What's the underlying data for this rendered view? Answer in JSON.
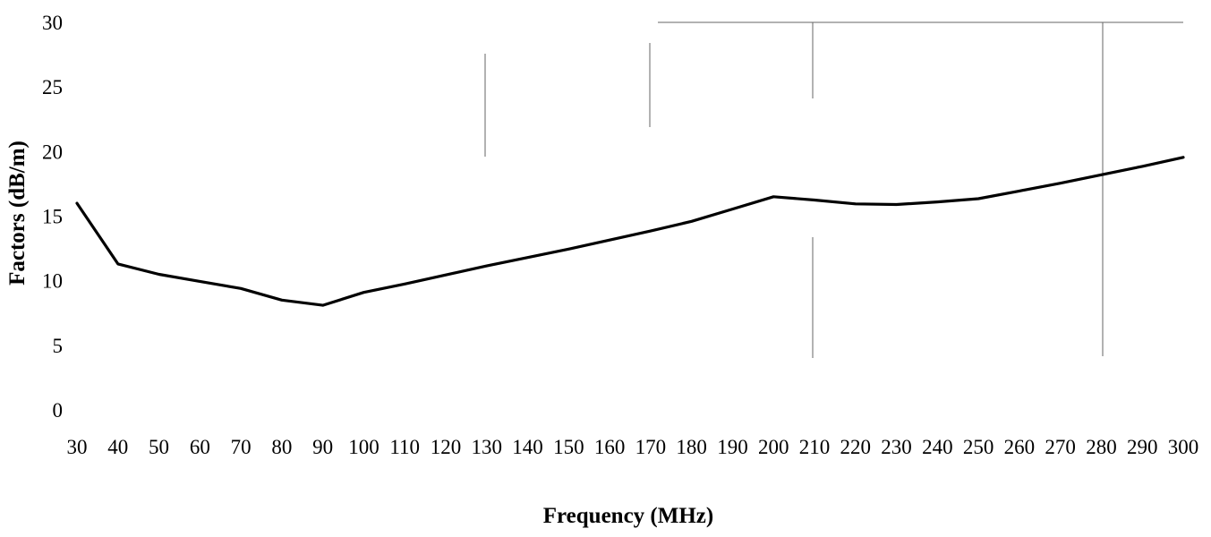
{
  "chart_data": {
    "type": "line",
    "xlabel": "Frequency (MHz)",
    "ylabel": "Factors (dB/m)",
    "xlim": [
      30,
      300
    ],
    "ylim": [
      0,
      30
    ],
    "x_ticks": [
      30,
      40,
      50,
      60,
      70,
      80,
      90,
      100,
      110,
      120,
      130,
      140,
      150,
      160,
      170,
      180,
      190,
      200,
      210,
      220,
      230,
      240,
      250,
      260,
      270,
      280,
      290,
      300
    ],
    "y_ticks": [
      0,
      5,
      10,
      15,
      20,
      25,
      30
    ],
    "grid": false,
    "line_color": "#000000",
    "series": [
      {
        "x": [
          30,
          40,
          50,
          60,
          70,
          80,
          90,
          100,
          110,
          120,
          130,
          140,
          150,
          160,
          170,
          180,
          190,
          200,
          210,
          220,
          230,
          240,
          250,
          260,
          270,
          280,
          290,
          300
        ],
        "values": [
          16.0,
          11.3,
          10.5,
          9.95,
          9.4,
          8.5,
          8.1,
          9.1,
          9.75,
          10.45,
          11.15,
          11.8,
          12.45,
          13.15,
          13.85,
          14.6,
          15.55,
          16.5,
          16.25,
          15.95,
          15.9,
          16.1,
          16.35,
          16.95,
          17.55,
          18.2,
          18.85,
          19.55
        ]
      }
    ]
  }
}
